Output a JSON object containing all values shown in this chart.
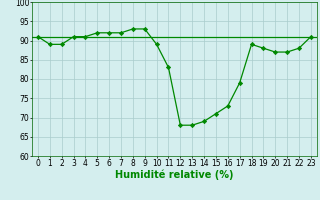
{
  "x": [
    0,
    1,
    2,
    3,
    4,
    5,
    6,
    7,
    8,
    9,
    10,
    11,
    12,
    13,
    14,
    15,
    16,
    17,
    18,
    19,
    20,
    21,
    22,
    23
  ],
  "y": [
    91,
    89,
    89,
    91,
    91,
    92,
    92,
    92,
    93,
    93,
    89,
    83,
    68,
    68,
    69,
    71,
    73,
    79,
    89,
    88,
    87,
    87,
    88,
    91
  ],
  "trend_y": [
    91,
    91
  ],
  "line_color": "#008800",
  "bg_color": "#d4eeee",
  "grid_color": "#aacccc",
  "xlabel": "Humidité relative (%)",
  "ylim": [
    60,
    100
  ],
  "xlim_min": -0.5,
  "xlim_max": 23.5,
  "yticks": [
    60,
    65,
    70,
    75,
    80,
    85,
    90,
    95,
    100
  ],
  "xticks": [
    0,
    1,
    2,
    3,
    4,
    5,
    6,
    7,
    8,
    9,
    10,
    11,
    12,
    13,
    14,
    15,
    16,
    17,
    18,
    19,
    20,
    21,
    22,
    23
  ],
  "marker": "D",
  "markersize": 2.2,
  "linewidth": 0.9,
  "xlabel_fontsize": 7,
  "tick_fontsize": 5.5
}
